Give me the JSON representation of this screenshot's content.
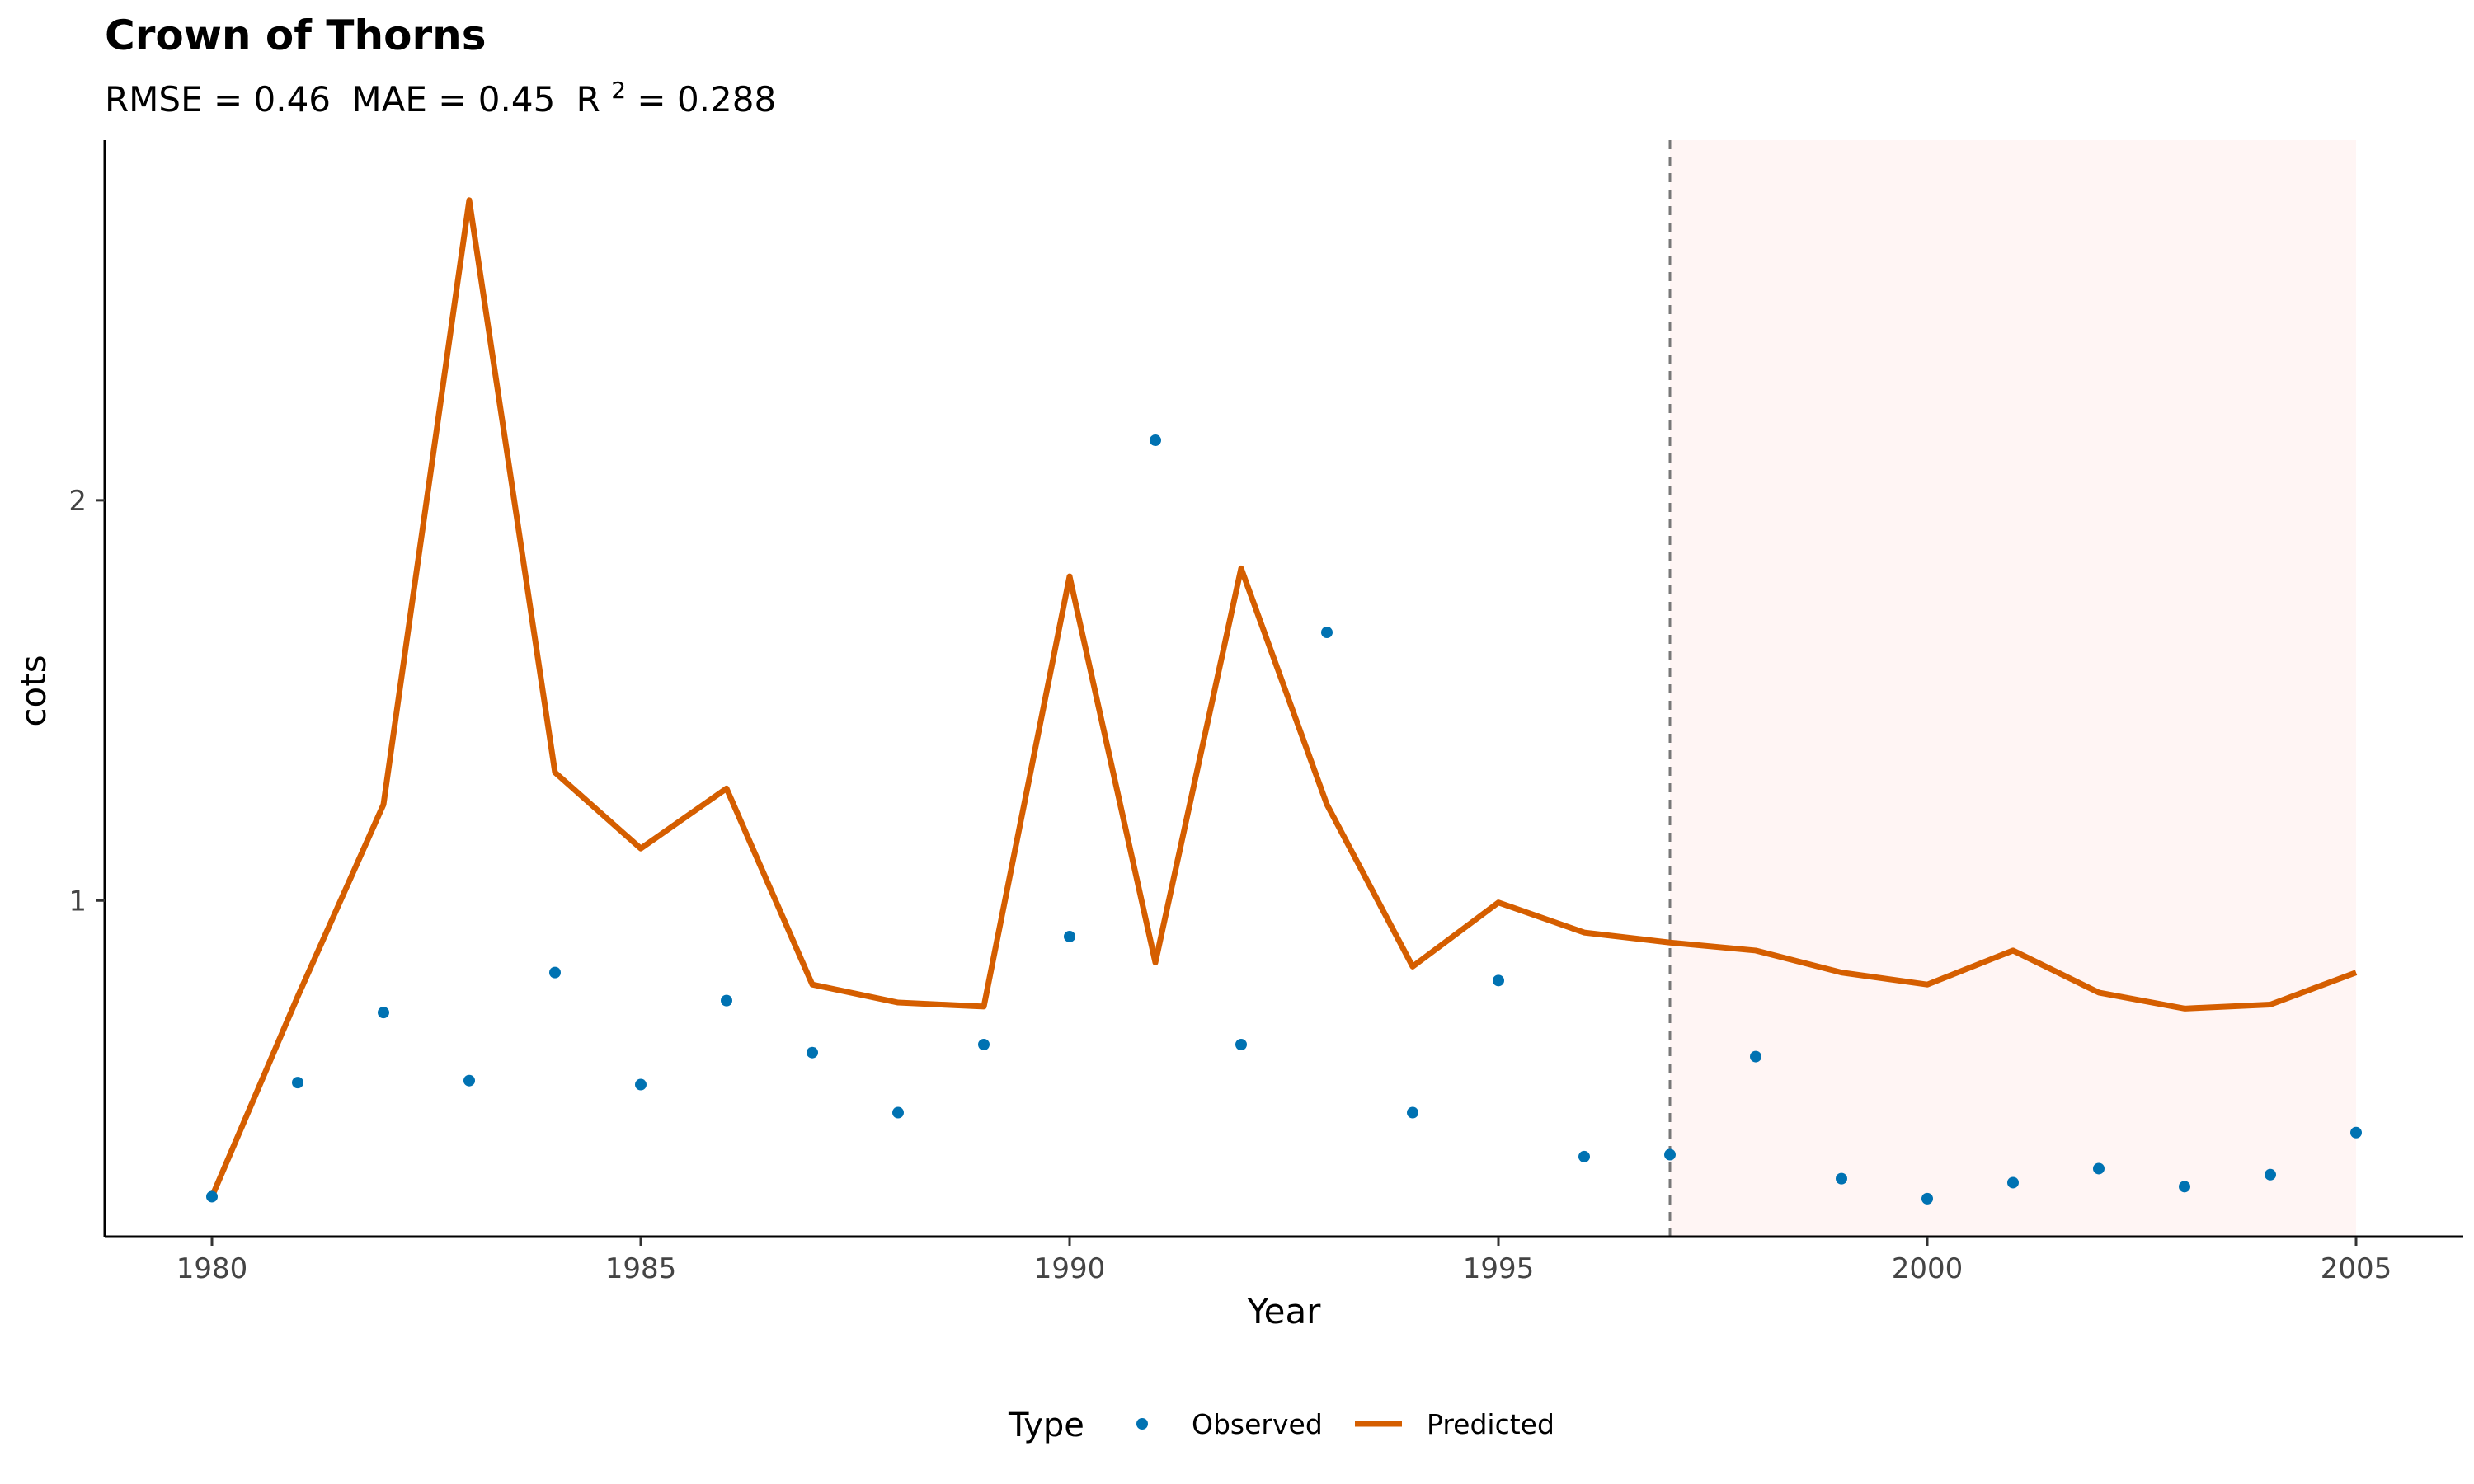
{
  "chart_data": {
    "type": "line",
    "title": "Crown of Thorns",
    "subtitle": {
      "rmse": "RMSE = 0.46",
      "mae": "MAE = 0.45",
      "r2_prefix": "R",
      "r2_sup": "2",
      "r2_value": " = 0.288"
    },
    "xlabel": "Year",
    "ylabel": "cots",
    "xlim": [
      1978.75,
      2006.25
    ],
    "ylim": [
      0.16,
      2.9
    ],
    "x_ticks": [
      1980,
      1985,
      1990,
      1995,
      2000,
      2005
    ],
    "x_tick_labels": [
      "1980",
      "1985",
      "1990",
      "1995",
      "2000",
      "2005"
    ],
    "y_ticks": [
      1,
      2
    ],
    "y_tick_labels": [
      "1",
      "2"
    ],
    "grid": false,
    "forecast_start": 1997,
    "forecast_region": [
      1997,
      2005
    ],
    "legend": {
      "title": "Type",
      "position": "bottom",
      "entries": [
        "Observed",
        "Predicted"
      ]
    },
    "x": [
      1980,
      1981,
      1982,
      1983,
      1984,
      1985,
      1986,
      1987,
      1988,
      1989,
      1990,
      1991,
      1992,
      1993,
      1994,
      1995,
      1996,
      1997,
      1998,
      1999,
      2000,
      2001,
      2002,
      2003,
      2004,
      2005
    ],
    "series": [
      {
        "name": "Observed",
        "kind": "point",
        "color": "#0072B2",
        "values": [
          0.26,
          0.545,
          0.72,
          0.55,
          0.82,
          0.54,
          0.75,
          0.62,
          0.47,
          0.64,
          0.91,
          2.15,
          0.64,
          1.67,
          0.47,
          0.8,
          0.36,
          0.365,
          0.61,
          0.305,
          0.255,
          0.295,
          0.33,
          0.285,
          0.315,
          0.42
        ]
      },
      {
        "name": "Predicted",
        "kind": "line",
        "color": "#D55E00",
        "values": [
          0.26,
          0.76,
          1.24,
          2.75,
          1.32,
          1.13,
          1.28,
          0.79,
          0.745,
          0.735,
          1.81,
          0.845,
          1.83,
          1.24,
          0.835,
          0.995,
          0.92,
          0.895,
          0.875,
          0.82,
          0.79,
          0.875,
          0.77,
          0.73,
          0.74,
          0.82
        ]
      }
    ],
    "colors": {
      "forecast_fill": "#FFF5F4",
      "forecast_line": "#777777",
      "axis": "#000000"
    }
  }
}
